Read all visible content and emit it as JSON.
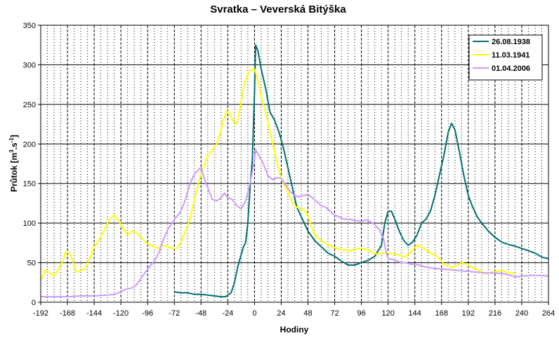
{
  "chart_data": {
    "type": "line",
    "title": "Svratka – Veverská Bitýška",
    "xlabel": "Hodiny",
    "ylabel_main": "Průtok [m",
    "ylabel_sup1": "3",
    "ylabel_mid": ".s",
    "ylabel_sup2": "-1",
    "ylabel_end": "]",
    "xlim": [
      -192,
      264
    ],
    "ylim": [
      0,
      350
    ],
    "x_ticks": [
      -192,
      -168,
      -144,
      -120,
      -96,
      -72,
      -48,
      -24,
      0,
      24,
      48,
      72,
      96,
      120,
      144,
      168,
      192,
      216,
      240,
      264
    ],
    "y_ticks": [
      0,
      50,
      100,
      150,
      200,
      250,
      300,
      350
    ],
    "grid": true,
    "legend_position": "top-right",
    "series": [
      {
        "name": "26.08.1938",
        "color": "#007070",
        "points": [
          [
            -72,
            13
          ],
          [
            -66,
            12
          ],
          [
            -60,
            12
          ],
          [
            -54,
            10
          ],
          [
            -48,
            10
          ],
          [
            -42,
            9
          ],
          [
            -36,
            8
          ],
          [
            -30,
            7
          ],
          [
            -26,
            7
          ],
          [
            -24,
            9
          ],
          [
            -21,
            12
          ],
          [
            -18,
            25
          ],
          [
            -15,
            45
          ],
          [
            -12,
            60
          ],
          [
            -10,
            70
          ],
          [
            -8,
            75
          ],
          [
            -6,
            100
          ],
          [
            -4,
            145
          ],
          [
            -2,
            180
          ],
          [
            0,
            265
          ],
          [
            1,
            325
          ],
          [
            3,
            318
          ],
          [
            6,
            295
          ],
          [
            10,
            270
          ],
          [
            14,
            240
          ],
          [
            18,
            230
          ],
          [
            22,
            215
          ],
          [
            26,
            195
          ],
          [
            30,
            170
          ],
          [
            34,
            145
          ],
          [
            38,
            120
          ],
          [
            42,
            108
          ],
          [
            48,
            90
          ],
          [
            54,
            78
          ],
          [
            60,
            70
          ],
          [
            66,
            62
          ],
          [
            72,
            58
          ],
          [
            78,
            52
          ],
          [
            84,
            47
          ],
          [
            90,
            47
          ],
          [
            96,
            50
          ],
          [
            102,
            53
          ],
          [
            108,
            58
          ],
          [
            114,
            72
          ],
          [
            117,
            100
          ],
          [
            120,
            115
          ],
          [
            123,
            115
          ],
          [
            126,
            105
          ],
          [
            130,
            90
          ],
          [
            134,
            78
          ],
          [
            138,
            72
          ],
          [
            142,
            76
          ],
          [
            146,
            85
          ],
          [
            150,
            100
          ],
          [
            154,
            105
          ],
          [
            158,
            115
          ],
          [
            162,
            135
          ],
          [
            166,
            160
          ],
          [
            170,
            185
          ],
          [
            174,
            215
          ],
          [
            177,
            226
          ],
          [
            180,
            218
          ],
          [
            184,
            190
          ],
          [
            188,
            160
          ],
          [
            192,
            135
          ],
          [
            196,
            120
          ],
          [
            200,
            108
          ],
          [
            204,
            100
          ],
          [
            210,
            90
          ],
          [
            216,
            82
          ],
          [
            222,
            76
          ],
          [
            228,
            73
          ],
          [
            234,
            71
          ],
          [
            240,
            68
          ],
          [
            246,
            65
          ],
          [
            252,
            62
          ],
          [
            258,
            57
          ],
          [
            264,
            55
          ]
        ]
      },
      {
        "name": "11.03.1941",
        "color": "#ffff00",
        "points": [
          [
            -192,
            28
          ],
          [
            -190,
            33
          ],
          [
            -188,
            40
          ],
          [
            -184,
            37
          ],
          [
            -180,
            33
          ],
          [
            -176,
            42
          ],
          [
            -172,
            52
          ],
          [
            -170,
            63
          ],
          [
            -166,
            62
          ],
          [
            -164,
            55
          ],
          [
            -162,
            47
          ],
          [
            -160,
            38
          ],
          [
            -156,
            40
          ],
          [
            -152,
            43
          ],
          [
            -148,
            55
          ],
          [
            -144,
            70
          ],
          [
            -140,
            78
          ],
          [
            -136,
            88
          ],
          [
            -132,
            100
          ],
          [
            -128,
            108
          ],
          [
            -126,
            110
          ],
          [
            -122,
            103
          ],
          [
            -118,
            93
          ],
          [
            -114,
            85
          ],
          [
            -110,
            90
          ],
          [
            -106,
            88
          ],
          [
            -102,
            82
          ],
          [
            -98,
            76
          ],
          [
            -94,
            72
          ],
          [
            -90,
            70
          ],
          [
            -86,
            68
          ],
          [
            -82,
            72
          ],
          [
            -78,
            70
          ],
          [
            -74,
            68
          ],
          [
            -70,
            68
          ],
          [
            -66,
            76
          ],
          [
            -62,
            90
          ],
          [
            -58,
            105
          ],
          [
            -54,
            130
          ],
          [
            -50,
            152
          ],
          [
            -46,
            170
          ],
          [
            -42,
            185
          ],
          [
            -38,
            192
          ],
          [
            -34,
            200
          ],
          [
            -31,
            212
          ],
          [
            -28,
            230
          ],
          [
            -25,
            242
          ],
          [
            -22,
            238
          ],
          [
            -19,
            228
          ],
          [
            -16,
            225
          ],
          [
            -13,
            245
          ],
          [
            -10,
            270
          ],
          [
            -7,
            285
          ],
          [
            -4,
            293
          ],
          [
            0,
            295
          ],
          [
            3,
            280
          ],
          [
            6,
            260
          ],
          [
            10,
            240
          ],
          [
            14,
            215
          ],
          [
            18,
            190
          ],
          [
            22,
            165
          ],
          [
            26,
            150
          ],
          [
            30,
            140
          ],
          [
            34,
            125
          ],
          [
            38,
            120
          ],
          [
            42,
            118
          ],
          [
            46,
            115
          ],
          [
            50,
            100
          ],
          [
            54,
            85
          ],
          [
            58,
            80
          ],
          [
            62,
            76
          ],
          [
            66,
            72
          ],
          [
            70,
            70
          ],
          [
            74,
            68
          ],
          [
            78,
            66
          ],
          [
            82,
            66
          ],
          [
            86,
            65
          ],
          [
            90,
            67
          ],
          [
            94,
            68
          ],
          [
            98,
            68
          ],
          [
            102,
            66
          ],
          [
            106,
            63
          ],
          [
            110,
            61
          ],
          [
            114,
            62
          ],
          [
            118,
            62
          ],
          [
            122,
            62
          ],
          [
            126,
            61
          ],
          [
            130,
            60
          ],
          [
            134,
            57
          ],
          [
            138,
            60
          ],
          [
            142,
            66
          ],
          [
            146,
            72
          ],
          [
            150,
            70
          ],
          [
            154,
            66
          ],
          [
            158,
            62
          ],
          [
            162,
            60
          ],
          [
            166,
            55
          ],
          [
            170,
            48
          ],
          [
            174,
            45
          ],
          [
            178,
            44
          ],
          [
            182,
            47
          ],
          [
            186,
            50
          ],
          [
            190,
            48
          ],
          [
            194,
            45
          ],
          [
            198,
            42
          ],
          [
            202,
            40
          ],
          [
            206,
            36
          ],
          [
            210,
            37
          ],
          [
            214,
            38
          ],
          [
            218,
            39
          ],
          [
            222,
            40
          ],
          [
            226,
            38
          ],
          [
            230,
            37
          ],
          [
            234,
            36
          ]
        ]
      },
      {
        "name": "01.04.2006",
        "color": "#cc99ff",
        "points": [
          [
            -192,
            7
          ],
          [
            -180,
            7
          ],
          [
            -168,
            7
          ],
          [
            -156,
            8
          ],
          [
            -144,
            8
          ],
          [
            -132,
            9
          ],
          [
            -126,
            10
          ],
          [
            -122,
            12
          ],
          [
            -118,
            15
          ],
          [
            -114,
            17
          ],
          [
            -110,
            18
          ],
          [
            -106,
            22
          ],
          [
            -102,
            30
          ],
          [
            -98,
            38
          ],
          [
            -94,
            45
          ],
          [
            -90,
            52
          ],
          [
            -86,
            62
          ],
          [
            -82,
            78
          ],
          [
            -78,
            92
          ],
          [
            -74,
            100
          ],
          [
            -70,
            108
          ],
          [
            -66,
            115
          ],
          [
            -62,
            130
          ],
          [
            -58,
            150
          ],
          [
            -54,
            162
          ],
          [
            -50,
            168
          ],
          [
            -48,
            170
          ],
          [
            -46,
            160
          ],
          [
            -42,
            145
          ],
          [
            -38,
            130
          ],
          [
            -34,
            128
          ],
          [
            -30,
            132
          ],
          [
            -27,
            138
          ],
          [
            -24,
            132
          ],
          [
            -20,
            130
          ],
          [
            -16,
            122
          ],
          [
            -12,
            118
          ],
          [
            -8,
            128
          ],
          [
            -4,
            150
          ],
          [
            0,
            180
          ],
          [
            1,
            193
          ],
          [
            4,
            185
          ],
          [
            8,
            175
          ],
          [
            12,
            160
          ],
          [
            16,
            155
          ],
          [
            20,
            157
          ],
          [
            24,
            157
          ],
          [
            28,
            148
          ],
          [
            32,
            140
          ],
          [
            36,
            135
          ],
          [
            40,
            133
          ],
          [
            44,
            135
          ],
          [
            48,
            136
          ],
          [
            52,
            132
          ],
          [
            56,
            127
          ],
          [
            60,
            122
          ],
          [
            64,
            120
          ],
          [
            68,
            115
          ],
          [
            72,
            110
          ],
          [
            76,
            108
          ],
          [
            80,
            105
          ],
          [
            84,
            105
          ],
          [
            88,
            104
          ],
          [
            92,
            103
          ],
          [
            96,
            102
          ],
          [
            100,
            104
          ],
          [
            104,
            102
          ],
          [
            108,
            98
          ],
          [
            112,
            92
          ],
          [
            116,
            80
          ],
          [
            118,
            65
          ],
          [
            120,
            55
          ],
          [
            124,
            54
          ],
          [
            128,
            52
          ],
          [
            132,
            50
          ],
          [
            136,
            50
          ],
          [
            140,
            48
          ],
          [
            144,
            48
          ],
          [
            148,
            47
          ],
          [
            152,
            45
          ],
          [
            156,
            44
          ],
          [
            160,
            43
          ],
          [
            168,
            42
          ],
          [
            176,
            41
          ],
          [
            184,
            40
          ],
          [
            192,
            39
          ],
          [
            200,
            38
          ],
          [
            208,
            37
          ],
          [
            216,
            37
          ],
          [
            224,
            36
          ],
          [
            230,
            34
          ],
          [
            234,
            32
          ],
          [
            240,
            33
          ],
          [
            248,
            34
          ],
          [
            256,
            34
          ],
          [
            264,
            33
          ]
        ]
      }
    ]
  }
}
